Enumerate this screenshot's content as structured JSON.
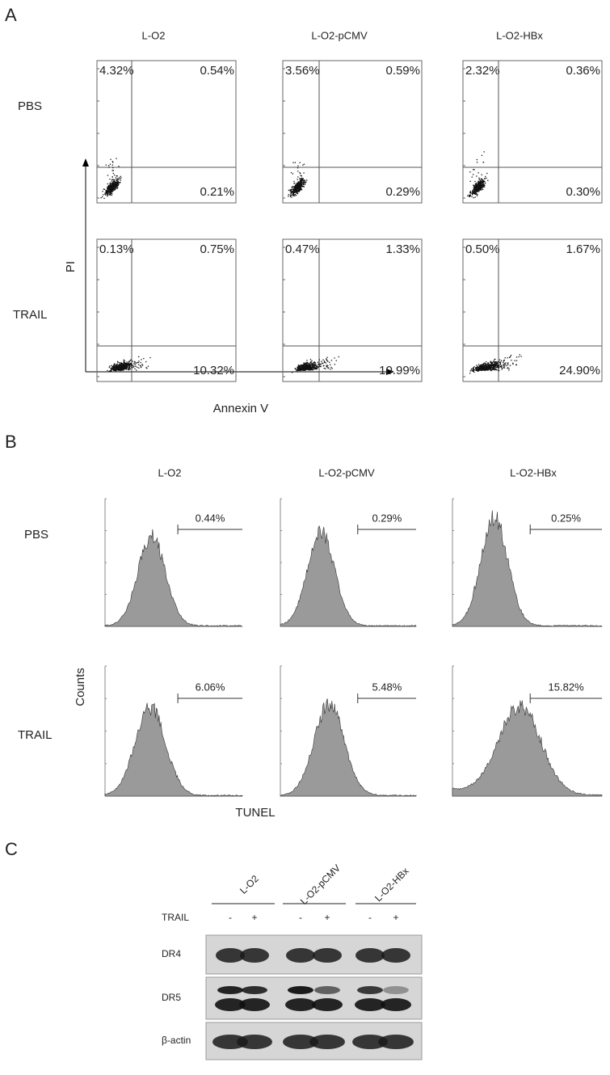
{
  "panel_a": {
    "letter": "A",
    "columns": [
      "L-O2",
      "L-O2-pCMV",
      "L-O2-HBx"
    ],
    "rows": [
      "PBS",
      "TRAIL"
    ],
    "y_axis": "PI",
    "x_axis": "Annexin V",
    "plots": [
      [
        {
          "upper_left": "4.32%",
          "upper_right": "0.54%",
          "lower_right": "0.21%"
        },
        {
          "upper_left": "3.56%",
          "upper_right": "0.59%",
          "lower_right": "0.29%"
        },
        {
          "upper_left": "2.32%",
          "upper_right": "0.36%",
          "lower_right": "0.30%"
        }
      ],
      [
        {
          "upper_left": "0.13%",
          "upper_right": "0.75%",
          "lower_right": "10.32%"
        },
        {
          "upper_left": "0.47%",
          "upper_right": "1.33%",
          "lower_right": "10.99%"
        },
        {
          "upper_left": "0.50%",
          "upper_right": "1.67%",
          "lower_right": "24.90%"
        }
      ]
    ]
  },
  "panel_b": {
    "letter": "B",
    "columns": [
      "L-O2",
      "L-O2-pCMV",
      "L-O2-HBx"
    ],
    "rows": [
      "PBS",
      "TRAIL"
    ],
    "y_axis": "Counts",
    "x_axis": "TUNEL",
    "plots": [
      [
        "0.44%",
        "0.29%",
        "0.25%"
      ],
      [
        "6.06%",
        "5.48%",
        "15.82%"
      ]
    ]
  },
  "panel_c": {
    "letter": "C",
    "columns": [
      "L-O2",
      "L-O2-pCMV",
      "L-O2-HBx"
    ],
    "treatment_label": "TRAIL",
    "treatment_states": [
      "-",
      "+"
    ],
    "blots": [
      "DR4",
      "DR5",
      "β-actin"
    ]
  }
}
